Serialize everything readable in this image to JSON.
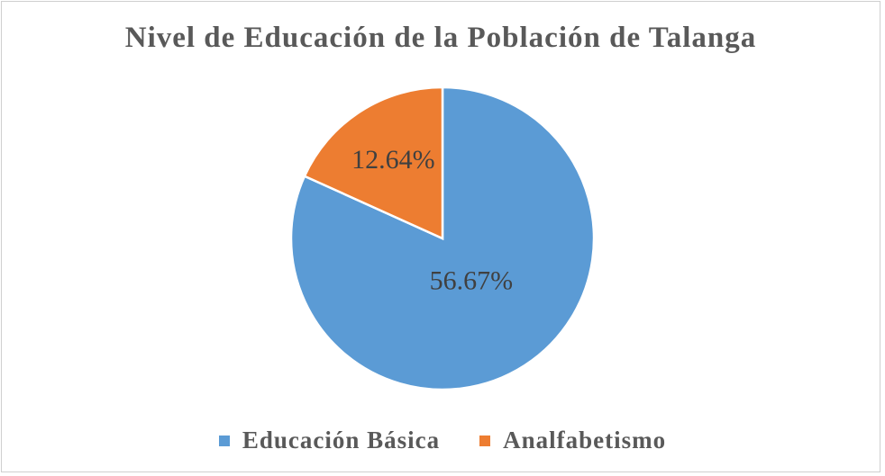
{
  "chart_data": {
    "type": "pie",
    "title": "Nivel de Educación de la Población de Talanga",
    "categories": [
      "Educación Básica",
      "Analfabetismo"
    ],
    "values": [
      56.67,
      12.64
    ],
    "data_labels": [
      "56.67%",
      "12.64%"
    ],
    "colors": [
      "#5b9bd5",
      "#ed7d31"
    ],
    "legend_position": "bottom"
  }
}
